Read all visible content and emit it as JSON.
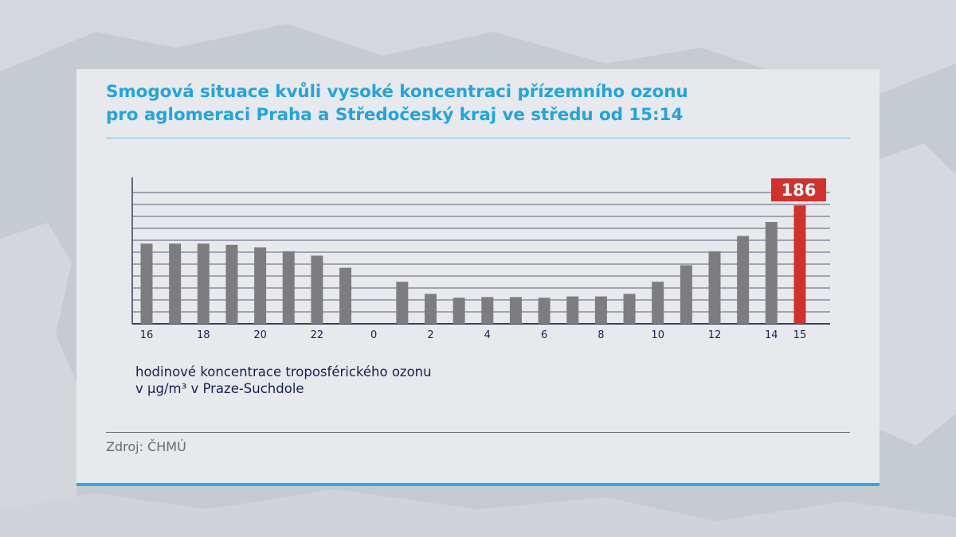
{
  "header": {
    "title_line1": "Smogová situace kvůli vysoké koncentraci přízemního ozonu",
    "title_line2": "pro aglomeraci Praha a Středočeský kraj ve středu od 15:14"
  },
  "note": {
    "line1": "hodinové koncentrace troposférického ozonu",
    "line2": "v µg/m³ v Praze-Suchdole"
  },
  "source": "Zdroj: ČHMÚ",
  "colors": {
    "title": "#1ea5e3",
    "bar": "#7d7d7f",
    "highlight": "#d0312d",
    "note": "#15205a"
  },
  "chart_data": {
    "type": "bar",
    "categories": [
      "16",
      "17",
      "18",
      "19",
      "20",
      "21",
      "22",
      "23",
      "0",
      "1",
      "2",
      "3",
      "4",
      "5",
      "6",
      "7",
      "8",
      "9",
      "10",
      "11",
      "12",
      "13",
      "14",
      "15"
    ],
    "tick_labels": [
      "16",
      "",
      "18",
      "",
      "20",
      "",
      "22",
      "",
      "0",
      "",
      "2",
      "",
      "4",
      "",
      "6",
      "",
      "8",
      "",
      "10",
      "",
      "12",
      "",
      "14",
      "15"
    ],
    "values": [
      126,
      126,
      126,
      124,
      120,
      114,
      107,
      88,
      0,
      66,
      47,
      41,
      42,
      42,
      41,
      43,
      43,
      47,
      66,
      92,
      114,
      138,
      160,
      186
    ],
    "highlight_index": 23,
    "highlight_label": "186",
    "ylim": [
      0,
      220
    ],
    "grid": true
  }
}
